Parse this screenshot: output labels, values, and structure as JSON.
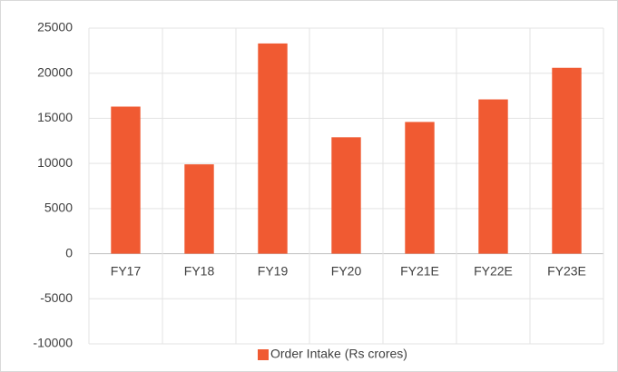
{
  "chart_data": {
    "type": "bar",
    "categories": [
      "FY17",
      "FY18",
      "FY19",
      "FY20",
      "FY21E",
      "FY22E",
      "FY23E"
    ],
    "series": [
      {
        "name": "Order Intake (Rs crores)",
        "color": "#f05a32",
        "values": [
          16300,
          9900,
          23300,
          12900,
          14600,
          17100,
          20600
        ]
      }
    ],
    "ylim": [
      -10000,
      25000
    ],
    "yticks": [
      -10000,
      -5000,
      0,
      5000,
      10000,
      15000,
      20000,
      25000
    ],
    "grid": true,
    "legend": "bottom"
  }
}
